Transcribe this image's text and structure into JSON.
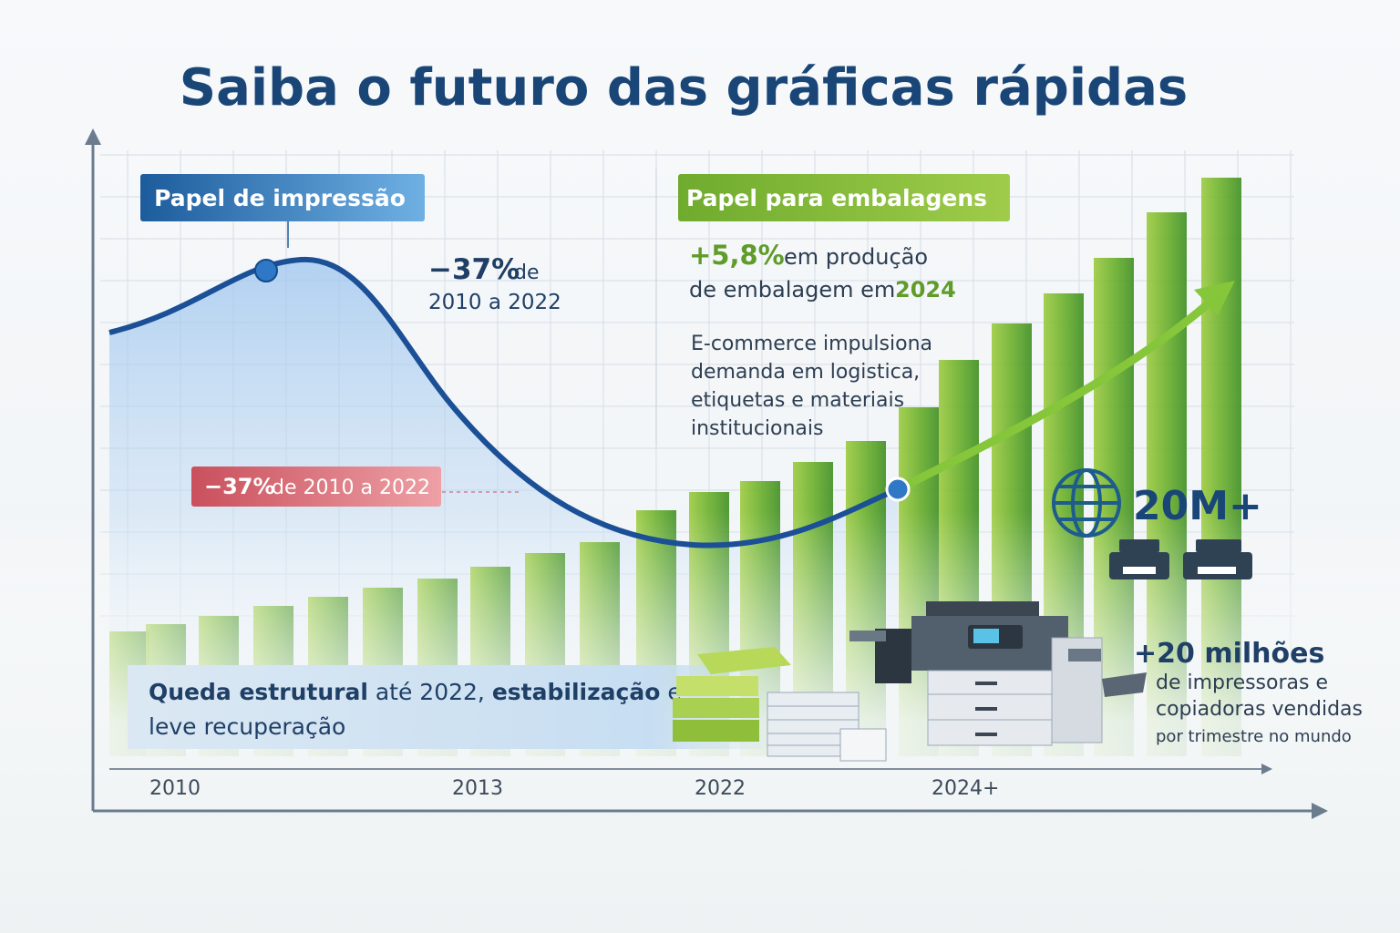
{
  "title": "Saiba o futuro das gráficas rápidas",
  "labels": {
    "printing_paper": "Papel de impressão",
    "packaging_paper": "Papel para embalagens"
  },
  "decline": {
    "value": "−37%",
    "text": "de",
    "period": "2010 a 2022"
  },
  "decline_tag": {
    "value": "−37%",
    "text": "de 2010 a 2022"
  },
  "growth": {
    "value": "+5,8%",
    "text": "em produção",
    "line2": "de embalagem em",
    "year": "2024"
  },
  "ecommerce": [
    "E-commerce impulsiona",
    "demanda em logistica,",
    "etiquetas e materiais",
    "institucionais"
  ],
  "stat": "20M+",
  "units": {
    "value": "+20 milhões",
    "lines": [
      "de impressoras e",
      "copiadoras vendidas",
      "por trimestre no mundo"
    ]
  },
  "summary": {
    "bold1": "Queda estrutural",
    "text1": "até 2022,",
    "bold2": "estabilização",
    "text2": "e",
    "line2": "leve recuperação"
  },
  "x_labels": [
    "2010",
    "2013",
    "2022",
    "2024+"
  ]
}
